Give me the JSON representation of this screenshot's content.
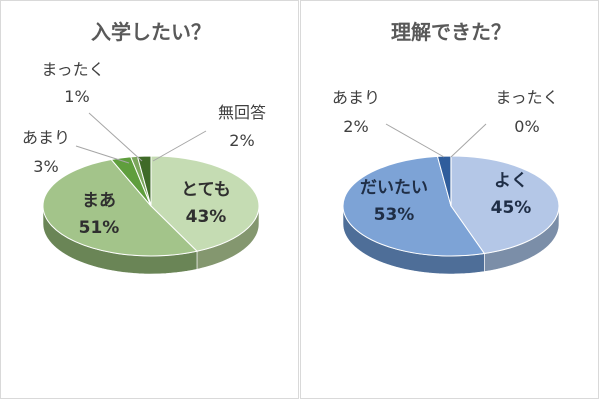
{
  "chart_data": [
    {
      "type": "pie",
      "title": "入学したい？",
      "slices": [
        {
          "label": "とても",
          "value": 43,
          "percent_label": "43%",
          "color": "#c5dcb3",
          "side": "#84976f"
        },
        {
          "label": "まあ",
          "value": 51,
          "percent_label": "51%",
          "color": "#a3c48a",
          "side": "#6a8556"
        },
        {
          "label": "あまり",
          "value": 3,
          "percent_label": "3%",
          "color": "#5f9e3d",
          "side": "#3d6a26"
        },
        {
          "label": "まったく",
          "value": 1,
          "percent_label": "1%",
          "color": "#7ba65c",
          "side": "#4d6d38"
        },
        {
          "label": "無回答",
          "value": 2,
          "percent_label": "2%",
          "color": "#3f6a28",
          "side": "#2a4719"
        }
      ]
    },
    {
      "type": "pie",
      "title": "理解できた？",
      "slices": [
        {
          "label": "よく",
          "value": 45,
          "percent_label": "45%",
          "color": "#b4c7e7",
          "side": "#7b8ea8"
        },
        {
          "label": "だいたい",
          "value": 53,
          "percent_label": "53%",
          "color": "#7da3d6",
          "side": "#4e6e98"
        },
        {
          "label": "あまり",
          "value": 2,
          "percent_label": "2%",
          "color": "#2f5d9c",
          "side": "#1d3c66"
        },
        {
          "label": "まったく",
          "value": 0,
          "percent_label": "0%",
          "color": "#dce6f2",
          "side": "#9aa8b8"
        }
      ]
    }
  ]
}
